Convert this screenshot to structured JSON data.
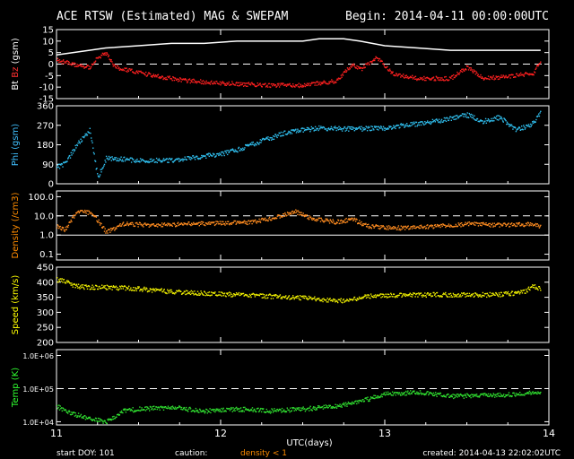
{
  "header": {
    "title": "ACE RTSW (Estimated) MAG & SWEPAM",
    "begin": "Begin: 2014-04-11 00:00:00UTC"
  },
  "footer": {
    "start_doy": "start DOY: 101",
    "caution_label": "caution:",
    "density_caution": "density < 1",
    "created": "created: 2014-04-13 22:02:02UTC",
    "caution_color": "#ff8c00"
  },
  "chart_data": {
    "type": "line",
    "xlabel": "UTC(days)",
    "x_range": [
      11,
      14
    ],
    "x_ticks": [
      "11",
      "12",
      "13",
      "14"
    ],
    "panels": [
      {
        "id": "mag",
        "ylabel_parts": [
          {
            "text": "Bt",
            "color": "#ffffff"
          },
          {
            "text": "Bz",
            "color": "#ff3030"
          },
          {
            "text": "(gsm)",
            "color": "#ffffff"
          }
        ],
        "ylim": [
          -15,
          15
        ],
        "scale": "linear",
        "ticks": [
          "15",
          "10",
          "5",
          "0",
          "-5",
          "-10",
          "-15"
        ],
        "tick_values": [
          15,
          10,
          5,
          0,
          -5,
          -10,
          -15
        ],
        "dashed_lines": [
          0
        ],
        "series": [
          {
            "name": "Bt",
            "color": "#ffffff",
            "style": "line",
            "x": [
              11.0,
              11.2,
              11.3,
              11.5,
              11.7,
              11.9,
              12.1,
              12.3,
              12.5,
              12.6,
              12.75,
              12.85,
              13.0,
              13.2,
              13.4,
              13.6,
              13.8,
              13.95
            ],
            "y": [
              4,
              6,
              7,
              8,
              9,
              9,
              10,
              10,
              10,
              11,
              11,
              10,
              8,
              7,
              6,
              6,
              6,
              6
            ]
          },
          {
            "name": "Bz",
            "color": "#ff2020",
            "style": "dots",
            "x": [
              11.0,
              11.1,
              11.2,
              11.25,
              11.3,
              11.35,
              11.4,
              11.6,
              11.8,
              12.0,
              12.3,
              12.5,
              12.7,
              12.8,
              12.85,
              12.95,
              13.05,
              13.2,
              13.4,
              13.5,
              13.6,
              13.75,
              13.9,
              13.95
            ],
            "y": [
              2,
              0,
              -1,
              3,
              5,
              -1,
              -2,
              -5,
              -7,
              -8,
              -9,
              -9,
              -7,
              0,
              -2,
              3,
              -4,
              -6,
              -6,
              -1,
              -6,
              -5,
              -4,
              2
            ]
          }
        ]
      },
      {
        "id": "phi",
        "ylabel_parts": [
          {
            "text": "Phi (gsm)",
            "color": "#40c0ff"
          }
        ],
        "ylim": [
          0,
          360
        ],
        "scale": "linear",
        "ticks": [
          "360",
          "270",
          "180",
          "90",
          "0"
        ],
        "tick_values": [
          360,
          270,
          180,
          90,
          0
        ],
        "dashed_lines": [],
        "series": [
          {
            "name": "Phi",
            "color": "#30c0f0",
            "style": "dots",
            "x": [
              11.0,
              11.05,
              11.12,
              11.2,
              11.25,
              11.3,
              11.5,
              11.7,
              11.9,
              12.0,
              12.1,
              12.25,
              12.4,
              12.5,
              12.6,
              12.8,
              13.0,
              13.1,
              13.3,
              13.5,
              13.6,
              13.7,
              13.8,
              13.9,
              13.95
            ],
            "y": [
              80,
              95,
              180,
              250,
              30,
              120,
              110,
              110,
              130,
              140,
              160,
              200,
              240,
              250,
              260,
              255,
              260,
              270,
              290,
              320,
              290,
              310,
              250,
              280,
              330
            ]
          }
        ]
      },
      {
        "id": "density",
        "ylabel_parts": [
          {
            "text": "Density (/cm3)",
            "color": "#ff8c00"
          }
        ],
        "ylim": [
          0.05,
          200
        ],
        "scale": "log",
        "ticks": [
          "100.0",
          "10.0",
          "1.0",
          "0.1"
        ],
        "tick_values": [
          100,
          10,
          1,
          0.1
        ],
        "dashed_lines": [
          10
        ],
        "solid_lines": [
          1
        ],
        "series": [
          {
            "name": "Density",
            "color": "#ff8c20",
            "style": "dots",
            "x": [
              11.0,
              11.05,
              11.1,
              11.15,
              11.2,
              11.25,
              11.3,
              11.4,
              11.6,
              11.8,
              12.0,
              12.2,
              12.35,
              12.45,
              12.55,
              12.7,
              12.8,
              12.9,
              13.1,
              13.3,
              13.5,
              13.7,
              13.9,
              13.95
            ],
            "y": [
              3,
              2,
              10,
              20,
              15,
              6,
              1.5,
              4,
              3.5,
              4,
              4.5,
              5,
              10,
              18,
              8,
              5,
              7,
              3,
              2.5,
              3,
              4,
              3.5,
              4,
              3
            ]
          }
        ]
      },
      {
        "id": "speed",
        "ylabel_parts": [
          {
            "text": "Speed (km/s)",
            "color": "#ffff00"
          }
        ],
        "ylim": [
          200,
          450
        ],
        "scale": "linear",
        "ticks": [
          "450",
          "400",
          "350",
          "300",
          "250",
          "200"
        ],
        "tick_values": [
          450,
          400,
          350,
          300,
          250,
          200
        ],
        "dashed_lines": [],
        "series": [
          {
            "name": "Speed",
            "color": "#f0f000",
            "style": "dots",
            "x": [
              11.0,
              11.05,
              11.1,
              11.2,
              11.3,
              11.5,
              11.7,
              11.9,
              12.1,
              12.3,
              12.5,
              12.6,
              12.75,
              12.9,
              13.1,
              13.3,
              13.5,
              13.7,
              13.85,
              13.9,
              13.95
            ],
            "y": [
              410,
              405,
              390,
              385,
              385,
              380,
              370,
              365,
              360,
              355,
              350,
              345,
              340,
              355,
              360,
              360,
              360,
              360,
              370,
              390,
              380
            ]
          }
        ]
      },
      {
        "id": "temp",
        "ylabel_parts": [
          {
            "text": "Temp (K)",
            "color": "#30ff30"
          }
        ],
        "ylim": [
          8000,
          1500000
        ],
        "scale": "log",
        "ticks": [
          "1.0E+06",
          "1.0E+05",
          "1.0E+04"
        ],
        "tick_values": [
          1000000,
          100000,
          10000
        ],
        "dashed_lines": [
          100000
        ],
        "series": [
          {
            "name": "Temp",
            "color": "#30e030",
            "style": "dots",
            "x": [
              11.0,
              11.1,
              11.2,
              11.3,
              11.4,
              11.5,
              11.7,
              11.9,
              12.1,
              12.3,
              12.5,
              12.7,
              12.9,
              13.0,
              13.2,
              13.4,
              13.6,
              13.8,
              13.95
            ],
            "y": [
              30000,
              18000,
              13000,
              10000,
              22000,
              25000,
              28000,
              22000,
              25000,
              22000,
              25000,
              30000,
              50000,
              70000,
              80000,
              60000,
              65000,
              70000,
              80000
            ]
          }
        ]
      }
    ]
  }
}
